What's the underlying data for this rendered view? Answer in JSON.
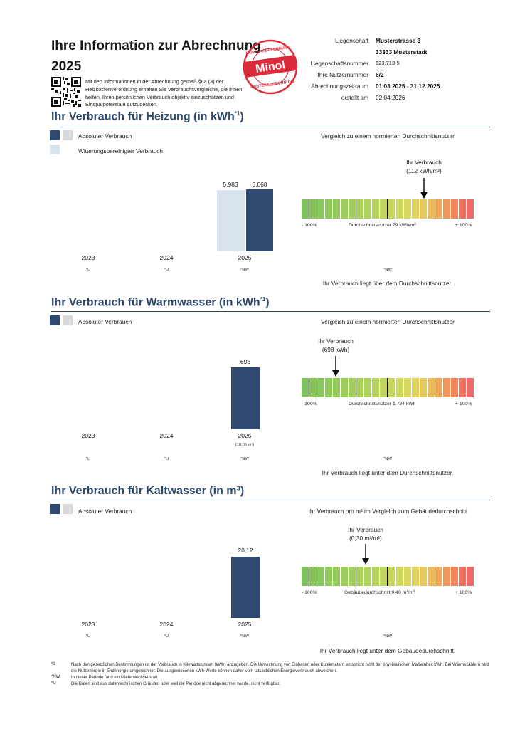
{
  "header": {
    "title_line1": "Ihre Information zur Abrechnung",
    "title_line2": "2025",
    "intro": "Mit den Informationen in der Abrechnung gemäß §6a (3) der Heizkostenverordnung erhalten Sie Verbrauchsvergleiche, die Ihnen helfen, Ihren persönlichen Verbrauch objektiv einzuschätzen und Einsparpotentiale aufzudecken.",
    "stamp_text": "Minol",
    "stamp_ring": "MUSTERABRECHNUNG",
    "meta": [
      {
        "label": "Liegenschaft",
        "value": "Musterstrasse 3",
        "bold": true
      },
      {
        "label": "",
        "value": "33333 Musterstadt",
        "bold": true
      },
      {
        "label": "Liegenschaftsnummer",
        "value": "623.713-5",
        "bold": false
      },
      {
        "label": "Ihre Nutzernummer",
        "value": "6/2",
        "bold": true
      },
      {
        "label": "Abrechnungszeitraum",
        "value": "01.03.2025 - 31.12.2025",
        "bold": true
      },
      {
        "label": "erstellt am",
        "value": "02.04.2026",
        "bold": false
      }
    ]
  },
  "colors": {
    "dark_bar": "#2f4a70",
    "light_bar": "#d9e3ee",
    "grey_swatch": "#d8d8d8",
    "heading": "#2d4a6e"
  },
  "heizung": {
    "title": "Ihr Verbrauch für Heizung (in kWh",
    "title_sup": "*1",
    "title_end": ")",
    "legend_abs": "Absoluter Verbrauch",
    "legend_wb": "Witterungsbereinigter Verbrauch",
    "compare_title": "Vergleich zu einem normierten Durchschnittsnutzer",
    "years": [
      "2023",
      "2024",
      "2025"
    ],
    "notes": [
      "*U",
      "*U",
      "*NW"
    ],
    "values": {
      "weather_2025": "5.983",
      "abs_2025": "6.068"
    },
    "arrow_label1": "Ihr Verbrauch",
    "arrow_label2": "(112 kWh/m²)",
    "scale_left": "- 100%",
    "scale_mid": "Durchschnittsnutzer 79 kWh/m²",
    "scale_right": "+ 100%",
    "scale_note": "*NW",
    "conclusion": "Ihr Verbrauch liegt über dem Durchschnittsnutzer."
  },
  "warmwasser": {
    "title": "Ihr Verbrauch für Warmwasser (in kWh",
    "title_sup": "*1",
    "title_end": ")",
    "legend_abs": "Absoluter Verbrauch",
    "compare_title": "Vergleich zu einem normierten Durchschnittsnutzer",
    "years": [
      "2023",
      "2024",
      "2025"
    ],
    "notes": [
      "*U",
      "*U",
      "*NW"
    ],
    "values": {
      "abs_2025": "698",
      "sub_2025": "(10,06 m³)"
    },
    "arrow_label1": "Ihr Verbrauch",
    "arrow_label2": "(698 kWh)",
    "scale_left": "- 100%",
    "scale_mid": "Durchschnittsnutzer 1.784 kWh",
    "scale_right": "+ 100%",
    "scale_note": "*NW",
    "conclusion": "Ihr Verbrauch liegt unter dem Durchschnittsnutzer."
  },
  "kaltwasser": {
    "title": "Ihr Verbrauch für Kaltwasser (in m³)",
    "legend_abs": "Absoluter Verbrauch",
    "compare_title": "Ihr Verbrauch pro m² im Vergleich zum Gebäudedurchschnitt",
    "years": [
      "2023",
      "2024",
      "2025"
    ],
    "notes": [
      "*U",
      "*U",
      "*NW"
    ],
    "values": {
      "abs_2025": "20,12"
    },
    "arrow_label1": "Ihr Verbrauch",
    "arrow_label2": "(0,30 m³/m²)",
    "scale_left": "- 100%",
    "scale_mid": "Gebäudedurchschnitt 0,40 m³/m²",
    "scale_right": "+ 100%",
    "scale_note": "*NW",
    "conclusion": "Ihr Verbrauch liegt unter dem Gebäudedurchschnitt."
  },
  "footnotes": [
    {
      "key": "*1",
      "text": "Nach den gesetzlichen Bestimmungen ist der Verbrauch in Kilowattstunden (kWh) anzugeben. Die Umrechnung von Einheiten oder Kubikmetern entspricht nicht der physikalischen Maßeinheit kWh. Bei Wärmezählern wird die Nutzenergie in Endenergie umgerechnet. Die ausgewiesenen kWh-Werte können daher vom tatsächlichen Energieverbrauch abweichen."
    },
    {
      "key": "*NW",
      "text": "In dieser Periode fand ein Mieterwechsel statt."
    },
    {
      "key": "*U",
      "text": "Die Daten sind aus datentechnischen Gründen oder weil die Periode nicht abgerechnet wurde, nicht verfügbar."
    }
  ]
}
